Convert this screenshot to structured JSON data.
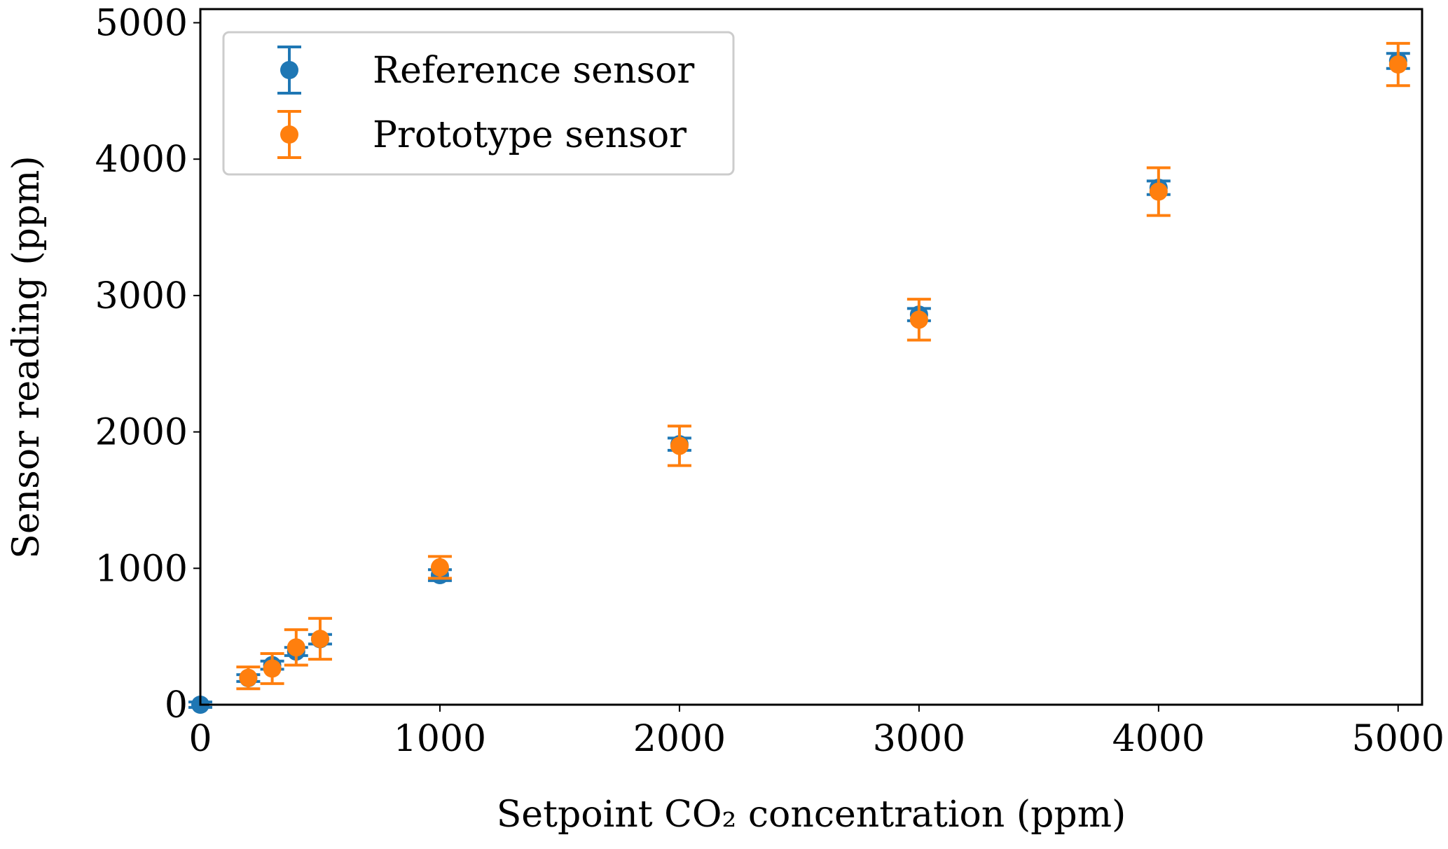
{
  "chart_data": {
    "type": "errorbar",
    "xlabel": "Setpoint CO₂ concentration (ppm)",
    "ylabel": "Sensor reading (ppm)",
    "xlim": [
      0,
      5100
    ],
    "ylim": [
      0,
      5100
    ],
    "xticks": [
      0,
      1000,
      2000,
      3000,
      4000,
      5000
    ],
    "yticks": [
      0,
      1000,
      2000,
      3000,
      4000,
      5000
    ],
    "legend": "upper left",
    "series": [
      {
        "name": "Reference sensor",
        "color": "#1f77b4",
        "x": [
          0,
          200,
          300,
          400,
          500,
          1000,
          2000,
          3000,
          4000,
          5000
        ],
        "values": [
          0,
          195,
          290,
          390,
          480,
          950,
          1910,
          2860,
          3790,
          4720
        ],
        "yerr": [
          20,
          25,
          30,
          30,
          35,
          40,
          45,
          45,
          50,
          55
        ]
      },
      {
        "name": "Prototype sensor",
        "color": "#ff7f0e",
        "x": [
          200,
          300,
          400,
          500,
          1000,
          2000,
          3000,
          4000,
          5000
        ],
        "values": [
          197,
          265,
          420,
          483,
          1007,
          1898,
          2823,
          3762,
          4694
        ],
        "yerr": [
          80,
          110,
          130,
          150,
          80,
          145,
          150,
          175,
          155
        ]
      }
    ]
  }
}
